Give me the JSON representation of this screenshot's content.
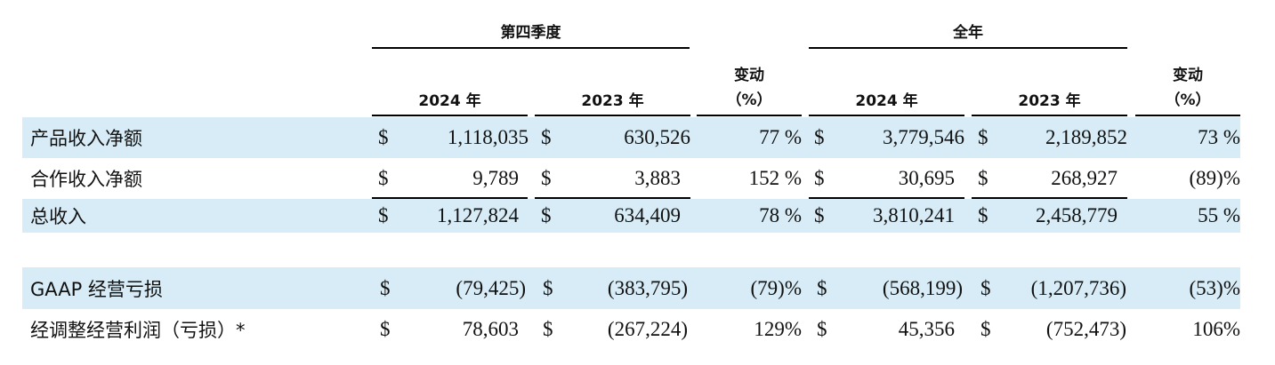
{
  "header": {
    "q4_group": "第四季度",
    "fy_group": "全年",
    "col_2024": "2024 年",
    "col_2023": "2023 年",
    "change_line1": "变动",
    "change_line2": "（%）"
  },
  "rows": [
    {
      "label": "产品收入净额",
      "q_cur_sym": "$",
      "q_cur": "1,118,035",
      "q_prev_sym": "$",
      "q_prev": "630,526",
      "q_chg": "77 %",
      "y_cur_sym": "$",
      "y_cur": "3,779,546",
      "y_prev_sym": "$",
      "y_prev": "2,189,852",
      "y_chg": "73 %"
    },
    {
      "label": "合作收入净额",
      "q_cur_sym": "$",
      "q_cur": "9,789",
      "q_prev_sym": "$",
      "q_prev": "3,883",
      "q_chg": "152 %",
      "y_cur_sym": "$",
      "y_cur": "30,695",
      "y_prev_sym": "$",
      "y_prev": "268,927",
      "y_chg": "(89)%"
    },
    {
      "label": "总收入",
      "q_cur_sym": "$",
      "q_cur": "1,127,824",
      "q_prev_sym": "$",
      "q_prev": "634,409",
      "q_chg": "78 %",
      "y_cur_sym": "$",
      "y_cur": "3,810,241",
      "y_prev_sym": "$",
      "y_prev": "2,458,779",
      "y_chg": "55 %"
    },
    {
      "label": "GAAP 经营亏损",
      "q_cur_sym": "$",
      "q_cur": "(79,425)",
      "q_prev_sym": "$",
      "q_prev": "(383,795)",
      "q_chg": "(79)%",
      "y_cur_sym": "$",
      "y_cur": "(568,199)",
      "y_prev_sym": "$",
      "y_prev": "(1,207,736)",
      "y_chg": "(53)%"
    },
    {
      "label": "经调整经营利润（亏损）*",
      "q_cur_sym": "$",
      "q_cur": "78,603",
      "q_prev_sym": "$",
      "q_prev": "(267,224)",
      "q_chg": "129%",
      "y_cur_sym": "$",
      "y_cur": "45,356",
      "y_prev_sym": "$",
      "y_prev": "(752,473)",
      "y_chg": "106%"
    }
  ]
}
